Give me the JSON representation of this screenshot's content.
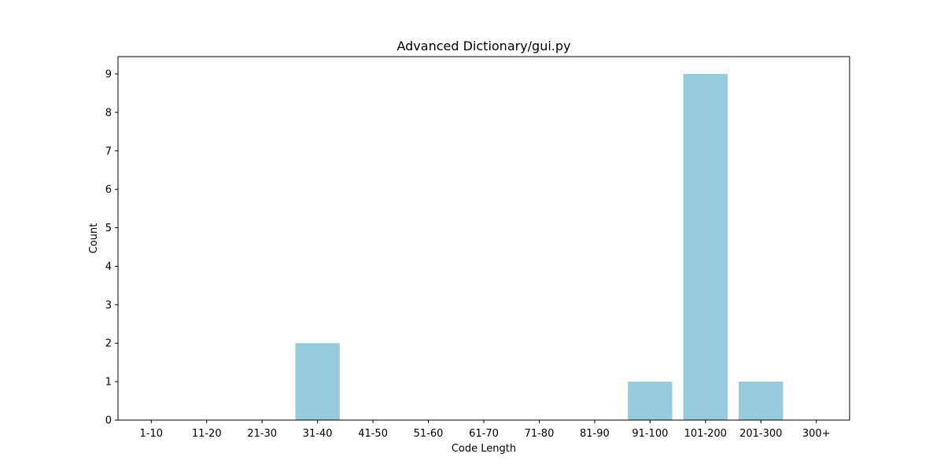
{
  "chart_data": {
    "type": "bar",
    "title": "Advanced Dictionary/gui.py",
    "xlabel": "Code Length",
    "ylabel": "Count",
    "categories": [
      "1-10",
      "11-20",
      "21-30",
      "31-40",
      "41-50",
      "51-60",
      "61-70",
      "71-80",
      "81-90",
      "91-100",
      "101-200",
      "201-300",
      "300+"
    ],
    "values": [
      0,
      0,
      0,
      2,
      0,
      0,
      0,
      0,
      0,
      1,
      9,
      1,
      0
    ],
    "ylim": [
      0,
      9.45
    ],
    "yticks": [
      0,
      1,
      2,
      3,
      4,
      5,
      6,
      7,
      8,
      9
    ],
    "grid": false,
    "legend": "none",
    "bar_color": "#96cadd"
  }
}
